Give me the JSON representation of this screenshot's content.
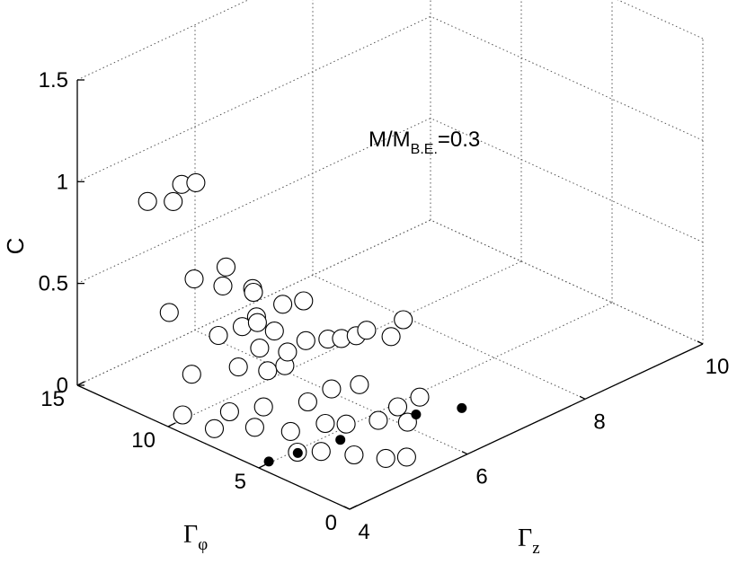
{
  "chart_data": {
    "type": "scatter",
    "dimensions": 3,
    "axes": {
      "x": {
        "label": "Γ",
        "label_subscript": "z",
        "range": [
          4,
          10
        ],
        "ticks": [
          4,
          6,
          8,
          10
        ],
        "tick_labels": [
          "4",
          "6",
          "8",
          "10"
        ]
      },
      "y": {
        "label": "Γ",
        "label_subscript": "φ",
        "range": [
          0,
          15
        ],
        "ticks": [
          0,
          5,
          10,
          15
        ],
        "tick_labels": [
          "0",
          "5",
          "10",
          "15"
        ]
      },
      "z": {
        "label": "C",
        "range": [
          0,
          1.5
        ],
        "ticks": [
          0,
          0.5,
          1,
          1.5
        ],
        "tick_labels": [
          "0",
          "0.5",
          "1",
          "1.5"
        ]
      }
    },
    "grid": true,
    "annotation": {
      "main": "M/M",
      "subscript": "B.E.",
      "suffix": "=0.3"
    },
    "series": [
      {
        "marker": "open-circle",
        "points": [
          [
            4.3,
            12.1,
            0.98
          ],
          [
            4.6,
            11.2,
            1.06
          ],
          [
            4.75,
            10.9,
            1.06
          ],
          [
            4.55,
            11.5,
            0.97
          ],
          [
            4.35,
            9.7,
            0.69
          ],
          [
            4.5,
            8.6,
            0.68
          ],
          [
            4.8,
            9.4,
            0.7
          ],
          [
            4.85,
            8.1,
            0.64
          ],
          [
            4.05,
            10.1,
            0.55
          ],
          [
            4.3,
            8.2,
            0.48
          ],
          [
            4.55,
            7.7,
            0.51
          ],
          [
            4.7,
            7.4,
            0.55
          ],
          [
            4.6,
            6.9,
            0.43
          ],
          [
            4.85,
            6.9,
            0.48
          ],
          [
            4.9,
            8.0,
            0.47
          ],
          [
            5.05,
            8.7,
            0.57
          ],
          [
            5.3,
            7.9,
            0.51
          ],
          [
            5.5,
            7.4,
            0.52
          ],
          [
            4.3,
            7.1,
            0.37
          ],
          [
            4.55,
            6.3,
            0.35
          ],
          [
            4.75,
            6.0,
            0.36
          ],
          [
            4.95,
            6.5,
            0.38
          ],
          [
            5.2,
            6.3,
            0.41
          ],
          [
            5.45,
            5.9,
            0.4
          ],
          [
            5.65,
            5.8,
            0.38
          ],
          [
            5.9,
            5.8,
            0.36
          ],
          [
            6.2,
            6.2,
            0.33
          ],
          [
            6.4,
            5.5,
            0.3
          ],
          [
            6.7,
            5.8,
            0.33
          ],
          [
            4.0,
            8.7,
            0.31
          ],
          [
            4.45,
            6.2,
            0.19
          ],
          [
            4.8,
            4.9,
            0.22
          ],
          [
            5.05,
            4.4,
            0.27
          ],
          [
            5.4,
            4.0,
            0.26
          ],
          [
            4.15,
            7.1,
            0.17
          ],
          [
            4.3,
            6.2,
            0.11
          ],
          [
            4.6,
            5.2,
            0.09
          ],
          [
            4.85,
            4.1,
            0.14
          ],
          [
            5.05,
            3.6,
            0.13
          ],
          [
            5.35,
            2.8,
            0.14
          ],
          [
            5.65,
            2.7,
            0.17
          ],
          [
            5.9,
            2.3,
            0.2
          ],
          [
            5.6,
            2.0,
            0.13
          ],
          [
            4.0,
            9.2,
            0.09
          ],
          [
            4.2,
            8.1,
            0.04
          ],
          [
            4.5,
            4.5,
            0.03
          ],
          [
            4.75,
            4.0,
            0.02
          ],
          [
            5.0,
            3.0,
            0.01
          ],
          [
            5.2,
            1.9,
            0.01
          ],
          [
            5.4,
            1.4,
            0.01
          ]
        ]
      },
      {
        "marker": "filled-dot",
        "points": [
          [
            4.2,
            5.1,
            0
          ],
          [
            4.6,
            4.8,
            0
          ],
          [
            5.2,
            4.4,
            0
          ],
          [
            6.3,
            3.8,
            0
          ],
          [
            6.8,
            2.9,
            0
          ]
        ]
      }
    ]
  }
}
